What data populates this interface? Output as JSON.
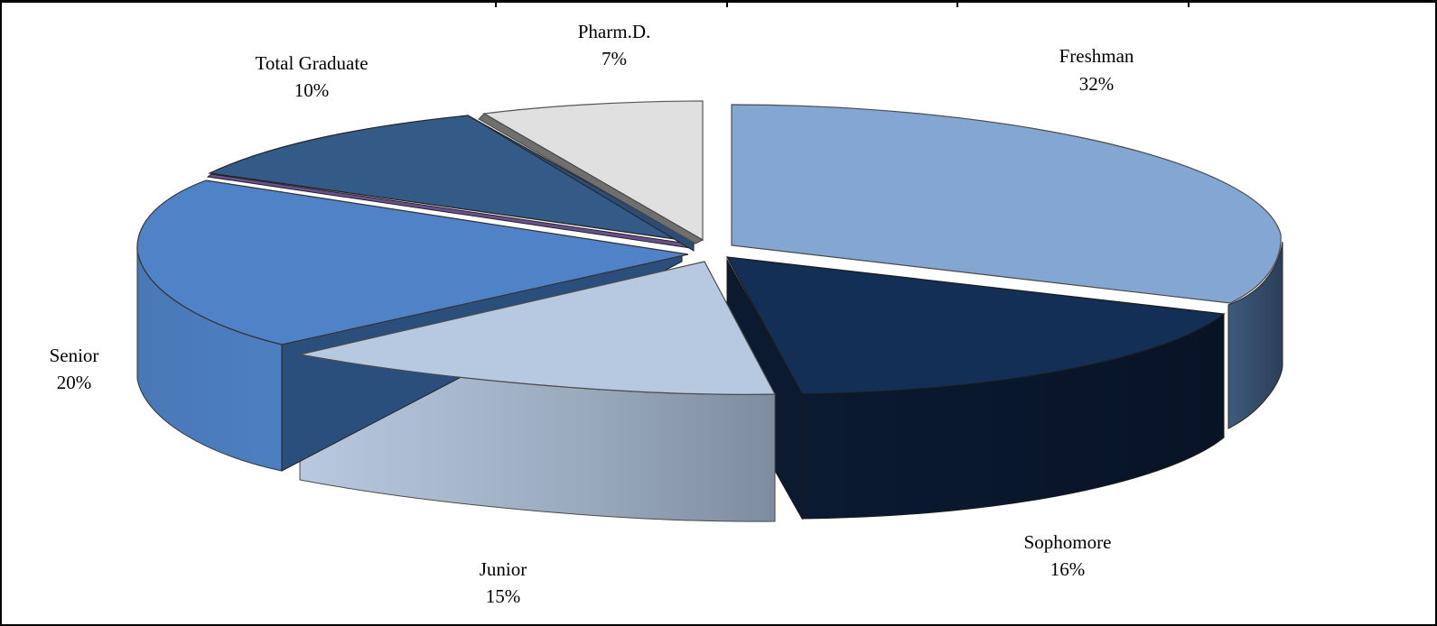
{
  "chart_data": {
    "type": "pie",
    "style": "3d-exploded",
    "title": "",
    "slices": [
      {
        "label": "Freshman",
        "value": 32,
        "pct_label": "32%",
        "color": "#84a6d3"
      },
      {
        "label": "Sophomore",
        "value": 16,
        "pct_label": "16%",
        "color": "#142f56"
      },
      {
        "label": "Junior",
        "value": 15,
        "pct_label": "15%",
        "color": "#b7c8e1"
      },
      {
        "label": "Senior",
        "value": 20,
        "pct_label": "20%",
        "color": "#4f82c6"
      },
      {
        "label": "",
        "value": 0.3,
        "pct_label": "",
        "color": "#6a4f8f"
      },
      {
        "label": "Total Graduate",
        "value": 10,
        "pct_label": "10%",
        "color": "#345a88"
      },
      {
        "label": "Pharm.D.",
        "value": 7,
        "pct_label": "7%",
        "color": "#e0e0e0"
      }
    ]
  }
}
